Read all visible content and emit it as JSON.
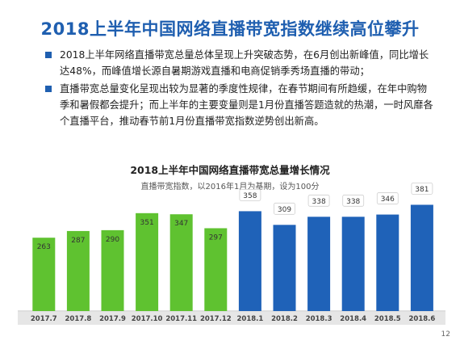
{
  "slide": {
    "title": "2018上半年中国网络直播带宽指数继续高位攀升",
    "bullets": [
      "2018上半年网络直播带宽总量总体呈现上升突破态势，在6月创出新峰值，同比增长达48%，而峰值增长源自暑期游戏直播和电商促销季秀场直播的带动；",
      "直播带宽总量变化呈现出较为显著的季度性规律，在春节期间有所趋缓，在年中购物季和暑假都会提升；而上半年的主要变量则是1月份直播答题造就的热潮，一时风靡各个直播平台，推动春节前1月份直播带宽指数逆势创出新高。"
    ],
    "page_number": "12",
    "colors": {
      "title": "#1f5fb0",
      "bullet": "#1f5fb0"
    }
  },
  "chart_data": {
    "type": "bar",
    "title": "2018上半年中国网络直播带宽总量增长情况",
    "subtitle": "直播带宽指数，以2016年1月为基期，设为100分",
    "categories": [
      "2017.7",
      "2017.8",
      "2017.9",
      "2017.10",
      "2017.11",
      "2017.12",
      "2018.1",
      "2018.2",
      "2018.3",
      "2018.4",
      "2018.5",
      "2018.6"
    ],
    "values": [
      263,
      287,
      290,
      351,
      347,
      297,
      358,
      309,
      338,
      338,
      346,
      381
    ],
    "ylim": [
      0,
      420
    ],
    "grid": false,
    "legend": "none",
    "colors": {
      "2017": "#5fc230",
      "2018": "#1f62b8"
    }
  }
}
